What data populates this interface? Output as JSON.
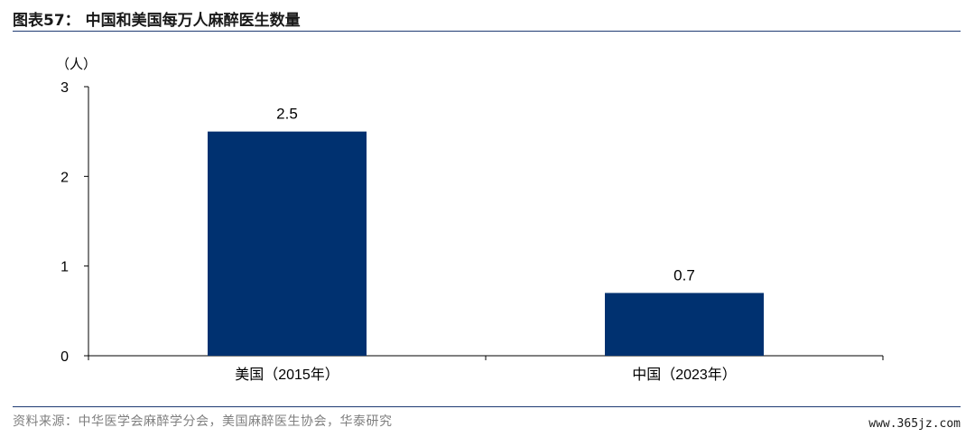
{
  "header": {
    "title": "图表57： 中国和美国每万人麻醉医生数量"
  },
  "chart_data": {
    "type": "bar",
    "categories": [
      "美国（2015年）",
      "中国（2023年）"
    ],
    "values": [
      2.5,
      0.7
    ],
    "data_labels": [
      "2.5",
      "0.7"
    ],
    "unit_label": "（人）",
    "y_ticks": [
      "0",
      "1",
      "2",
      "3"
    ],
    "ylim": [
      0,
      3
    ],
    "bar_color": "#003170",
    "grid": false,
    "legend": "none"
  },
  "footer": {
    "source": "资料来源：中华医学会麻醉学分会，美国麻醉医生协会，华泰研究",
    "watermark": "www.365jz.com"
  }
}
